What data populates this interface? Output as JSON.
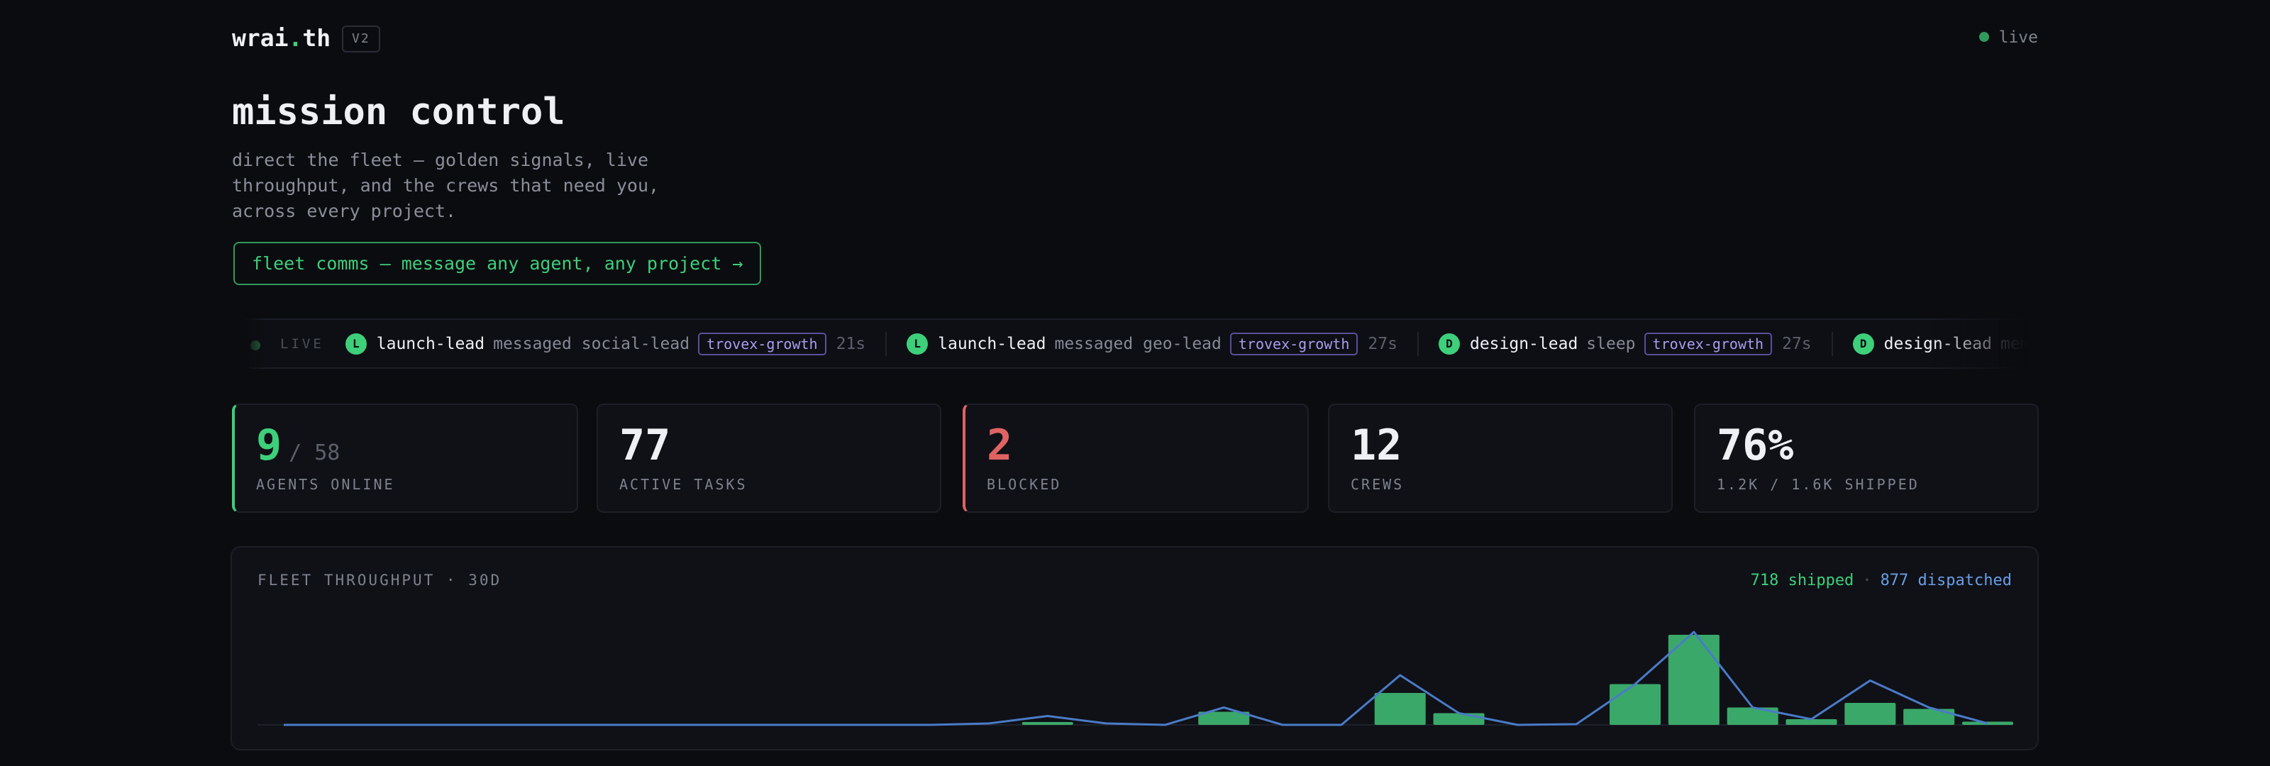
{
  "header": {
    "brand": [
      "wrai",
      ".",
      "th"
    ],
    "version": "V2",
    "status": "live"
  },
  "hero": {
    "title": "mission control",
    "subtitle": "direct the fleet — golden signals, live throughput, and the crews that need you, across every project.",
    "button": "fleet comms — message any agent, any project →"
  },
  "ticker": {
    "label": "LIVE",
    "items": [
      {
        "avatar": "L",
        "agent": "launch-lead",
        "action": "messaged social-lead",
        "project": "trovex-growth",
        "time": "21s"
      },
      {
        "avatar": "L",
        "agent": "launch-lead",
        "action": "messaged geo-lead",
        "project": "trovex-growth",
        "time": "27s"
      },
      {
        "avatar": "D",
        "agent": "design-lead",
        "action": "sleep",
        "project": "trovex-growth",
        "time": "27s"
      },
      {
        "avatar": "D",
        "agent": "design-lead",
        "action": "memory wip-"
      }
    ]
  },
  "stats": [
    {
      "value": 9,
      "suffix": "/ 58",
      "label": "AGENTS ONLINE",
      "accent": "#3ecf7a"
    },
    {
      "value": 77,
      "label": "ACTIVE TASKS"
    },
    {
      "value": 2,
      "label": "BLOCKED",
      "accent": "#e06363"
    },
    {
      "value": 12,
      "label": "CREWS"
    },
    {
      "value": "76%",
      "label": "1.2K / 1.6K SHIPPED"
    }
  ],
  "chart_data": {
    "type": "bar-line",
    "title": "FLEET THROUGHPUT · 30D",
    "legend_separator": "·",
    "ylim": [
      0,
      300
    ],
    "series": [
      {
        "name": "718 shipped",
        "color": "#3aa869",
        "values": [
          0,
          0,
          0,
          0,
          0,
          0,
          0,
          0,
          0,
          0,
          0,
          0,
          0,
          8,
          0,
          0,
          37,
          0,
          0,
          90,
          33,
          0,
          0,
          115,
          254,
          49,
          16,
          62,
          45,
          9
        ]
      },
      {
        "name": "877 dispatched",
        "color": "#4a7bc7",
        "values": [
          0,
          0,
          0,
          0,
          0,
          0,
          0,
          0,
          0,
          0,
          0,
          0,
          4,
          25,
          4,
          0,
          49,
          0,
          0,
          140,
          33,
          0,
          2,
          115,
          262,
          49,
          16,
          125,
          49,
          4
        ]
      }
    ]
  }
}
